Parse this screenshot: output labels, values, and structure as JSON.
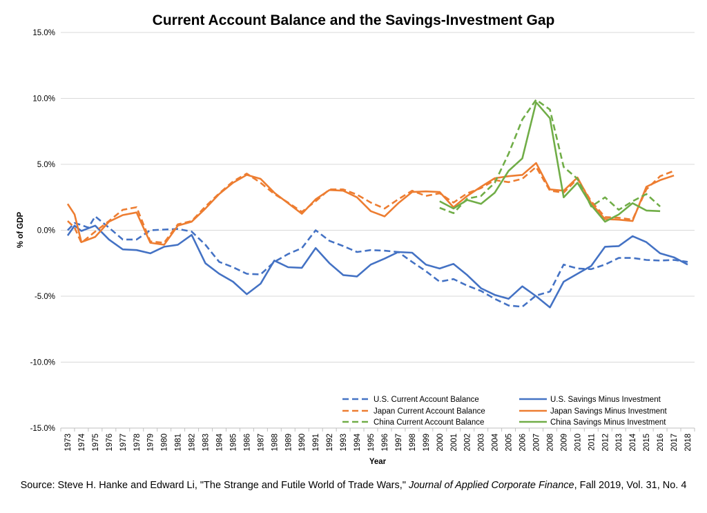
{
  "chart_data": {
    "type": "line",
    "title": "Current Account Balance and the Savings-Investment Gap",
    "xlabel": "Year",
    "ylabel": "% of GDP",
    "ylim": [
      -15,
      15
    ],
    "yticks": [
      -15,
      -10,
      -5,
      0,
      5,
      10,
      15
    ],
    "ytick_labels": [
      "-15.0%",
      "-10.0%",
      "-5.0%",
      "0.0%",
      "5.0%",
      "10.0%",
      "15.0%"
    ],
    "x": [
      1973,
      1974,
      1975,
      1976,
      1977,
      1978,
      1979,
      1980,
      1981,
      1982,
      1983,
      1984,
      1985,
      1986,
      1987,
      1988,
      1989,
      1990,
      1991,
      1992,
      1993,
      1994,
      1995,
      1996,
      1997,
      1998,
      1999,
      2000,
      2001,
      2002,
      2003,
      2004,
      2005,
      2006,
      2007,
      2008,
      2009,
      2010,
      2011,
      2012,
      2013,
      2014,
      2015,
      2016,
      2017,
      2018
    ],
    "x_tick_labels": [
      "1973",
      "1974",
      "1975",
      "1976",
      "1977",
      "1978",
      "1979",
      "1980",
      "1981",
      "1982",
      "1983",
      "1984",
      "1985",
      "1986",
      "1987",
      "1988",
      "1989",
      "1990",
      "1991",
      "1992",
      "1993",
      "1994",
      "1995",
      "1996",
      "1997",
      "1998",
      "1999",
      "2000",
      "2001",
      "2002",
      "2003",
      "2004",
      "2005",
      "2006",
      "2007",
      "2008",
      "2009",
      "2010",
      "2011",
      "2012",
      "2013",
      "2014",
      "2015",
      "2016",
      "2017",
      "2018"
    ],
    "grid": true,
    "legend_position": "bottom-right",
    "series": [
      {
        "name": "U.S. Current Account Balance",
        "color": "#4472C4",
        "dash": true,
        "points": [
          [
            1973,
            0.0
          ],
          [
            1973.5,
            0.55
          ],
          [
            1974,
            0.4
          ],
          [
            1974.5,
            0.2
          ],
          [
            1975,
            1.05
          ],
          [
            1976,
            0.2
          ],
          [
            1977,
            -0.7
          ],
          [
            1978,
            -0.7
          ],
          [
            1979,
            0.0
          ],
          [
            1980,
            0.05
          ],
          [
            1981,
            0.1
          ],
          [
            1982,
            -0.1
          ],
          [
            1983,
            -1.1
          ],
          [
            1984,
            -2.4
          ],
          [
            1985,
            -2.8
          ],
          [
            1986,
            -3.3
          ],
          [
            1987,
            -3.35
          ],
          [
            1988,
            -2.4
          ],
          [
            1989,
            -1.8
          ],
          [
            1990,
            -1.35
          ],
          [
            1991,
            0.0
          ],
          [
            1992,
            -0.8
          ],
          [
            1993,
            -1.2
          ],
          [
            1994,
            -1.65
          ],
          [
            1995,
            -1.5
          ],
          [
            1996,
            -1.55
          ],
          [
            1997,
            -1.65
          ],
          [
            1998,
            -2.4
          ],
          [
            1999,
            -3.1
          ],
          [
            2000,
            -3.9
          ],
          [
            2001,
            -3.7
          ],
          [
            2002,
            -4.2
          ],
          [
            2003,
            -4.6
          ],
          [
            2004,
            -5.2
          ],
          [
            2005,
            -5.7
          ],
          [
            2006,
            -5.8
          ],
          [
            2007,
            -4.95
          ],
          [
            2008,
            -4.65
          ],
          [
            2009,
            -2.6
          ],
          [
            2010,
            -2.9
          ],
          [
            2011,
            -2.95
          ],
          [
            2012,
            -2.6
          ],
          [
            2013,
            -2.1
          ],
          [
            2014,
            -2.1
          ],
          [
            2015,
            -2.25
          ],
          [
            2016,
            -2.3
          ],
          [
            2017,
            -2.25
          ],
          [
            2018,
            -2.4
          ]
        ]
      },
      {
        "name": "U.S. Savings Minus Investment",
        "color": "#4472C4",
        "dash": false,
        "points": [
          [
            1973,
            -0.4
          ],
          [
            1973.5,
            0.35
          ],
          [
            1974,
            -0.05
          ],
          [
            1975,
            0.35
          ],
          [
            1976,
            -0.7
          ],
          [
            1977,
            -1.45
          ],
          [
            1978,
            -1.5
          ],
          [
            1979,
            -1.75
          ],
          [
            1980,
            -1.25
          ],
          [
            1981,
            -1.1
          ],
          [
            1982,
            -0.35
          ],
          [
            1983,
            -2.5
          ],
          [
            1984,
            -3.3
          ],
          [
            1985,
            -3.9
          ],
          [
            1986,
            -4.85
          ],
          [
            1987,
            -4.05
          ],
          [
            1988,
            -2.3
          ],
          [
            1989,
            -2.8
          ],
          [
            1990,
            -2.85
          ],
          [
            1991,
            -1.35
          ],
          [
            1992,
            -2.5
          ],
          [
            1993,
            -3.4
          ],
          [
            1994,
            -3.5
          ],
          [
            1995,
            -2.6
          ],
          [
            1996,
            -2.15
          ],
          [
            1997,
            -1.65
          ],
          [
            1998,
            -1.7
          ],
          [
            1999,
            -2.6
          ],
          [
            2000,
            -2.9
          ],
          [
            2001,
            -2.55
          ],
          [
            2002,
            -3.4
          ],
          [
            2003,
            -4.4
          ],
          [
            2004,
            -4.9
          ],
          [
            2005,
            -5.2
          ],
          [
            2006,
            -4.25
          ],
          [
            2007,
            -5.0
          ],
          [
            2008,
            -5.85
          ],
          [
            2009,
            -3.9
          ],
          [
            2010,
            -3.3
          ],
          [
            2011,
            -2.7
          ],
          [
            2012,
            -1.25
          ],
          [
            2013,
            -1.2
          ],
          [
            2014,
            -0.45
          ],
          [
            2015,
            -0.9
          ],
          [
            2016,
            -1.75
          ],
          [
            2017,
            -2.05
          ],
          [
            2018,
            -2.6
          ]
        ]
      },
      {
        "name": "Japan Current Account Balance",
        "color": "#ED7D31",
        "dash": true,
        "points": [
          [
            1973,
            0.7
          ],
          [
            1973.5,
            0.2
          ],
          [
            1974,
            -0.95
          ],
          [
            1975,
            -0.1
          ],
          [
            1976,
            0.7
          ],
          [
            1977,
            1.55
          ],
          [
            1978,
            1.75
          ],
          [
            1979,
            -0.85
          ],
          [
            1980,
            -0.95
          ],
          [
            1981,
            0.45
          ],
          [
            1982,
            0.7
          ],
          [
            1983,
            1.8
          ],
          [
            1984,
            2.8
          ],
          [
            1985,
            3.7
          ],
          [
            1986,
            4.3
          ],
          [
            1987,
            3.6
          ],
          [
            1988,
            2.75
          ],
          [
            1989,
            2.1
          ],
          [
            1990,
            1.4
          ],
          [
            1991,
            2.2
          ],
          [
            1992,
            3.1
          ],
          [
            1993,
            3.1
          ],
          [
            1994,
            2.7
          ],
          [
            1995,
            2.1
          ],
          [
            1996,
            1.65
          ],
          [
            1997,
            2.35
          ],
          [
            1998,
            3.0
          ],
          [
            1999,
            2.6
          ],
          [
            2000,
            2.8
          ],
          [
            2001,
            2.1
          ],
          [
            2002,
            2.8
          ],
          [
            2003,
            3.2
          ],
          [
            2004,
            3.8
          ],
          [
            2005,
            3.65
          ],
          [
            2006,
            3.9
          ],
          [
            2007,
            4.8
          ],
          [
            2008,
            3.0
          ],
          [
            2009,
            2.85
          ],
          [
            2010,
            3.9
          ],
          [
            2011,
            2.2
          ],
          [
            2012,
            1.0
          ],
          [
            2013,
            0.95
          ],
          [
            2014,
            0.8
          ],
          [
            2015,
            3.1
          ],
          [
            2016,
            4.1
          ],
          [
            2017,
            4.5
          ]
        ]
      },
      {
        "name": "Japan Savings Minus Investment",
        "color": "#ED7D31",
        "dash": false,
        "points": [
          [
            1973,
            2.0
          ],
          [
            1973.5,
            1.2
          ],
          [
            1974,
            -0.9
          ],
          [
            1975,
            -0.5
          ],
          [
            1976,
            0.65
          ],
          [
            1977,
            1.15
          ],
          [
            1978,
            1.35
          ],
          [
            1979,
            -0.95
          ],
          [
            1980,
            -1.1
          ],
          [
            1981,
            0.35
          ],
          [
            1982,
            0.65
          ],
          [
            1983,
            1.65
          ],
          [
            1984,
            2.75
          ],
          [
            1985,
            3.6
          ],
          [
            1986,
            4.2
          ],
          [
            1987,
            3.9
          ],
          [
            1988,
            2.85
          ],
          [
            1989,
            2.05
          ],
          [
            1990,
            1.25
          ],
          [
            1991,
            2.35
          ],
          [
            1992,
            3.05
          ],
          [
            1993,
            3.0
          ],
          [
            1994,
            2.5
          ],
          [
            1995,
            1.45
          ],
          [
            1996,
            1.05
          ],
          [
            1997,
            2.05
          ],
          [
            1998,
            2.9
          ],
          [
            1999,
            2.95
          ],
          [
            2000,
            2.9
          ],
          [
            2001,
            1.75
          ],
          [
            2002,
            2.6
          ],
          [
            2003,
            3.3
          ],
          [
            2004,
            3.95
          ],
          [
            2005,
            4.1
          ],
          [
            2006,
            4.2
          ],
          [
            2007,
            5.1
          ],
          [
            2008,
            3.1
          ],
          [
            2009,
            3.0
          ],
          [
            2010,
            4.0
          ],
          [
            2011,
            2.05
          ],
          [
            2012,
            0.85
          ],
          [
            2013,
            0.8
          ],
          [
            2014,
            0.7
          ],
          [
            2015,
            3.3
          ],
          [
            2016,
            3.8
          ],
          [
            2017,
            4.15
          ]
        ]
      },
      {
        "name": "China Current Account Balance",
        "color": "#70AD47",
        "dash": true,
        "points": [
          [
            2000,
            1.7
          ],
          [
            2001,
            1.3
          ],
          [
            2002,
            2.4
          ],
          [
            2003,
            2.6
          ],
          [
            2004,
            3.6
          ],
          [
            2005,
            5.8
          ],
          [
            2006,
            8.4
          ],
          [
            2007,
            9.9
          ],
          [
            2008,
            9.15
          ],
          [
            2009,
            4.8
          ],
          [
            2010,
            3.9
          ],
          [
            2011,
            1.8
          ],
          [
            2012,
            2.5
          ],
          [
            2013,
            1.55
          ],
          [
            2014,
            2.2
          ],
          [
            2015,
            2.75
          ],
          [
            2016,
            1.8
          ]
        ]
      },
      {
        "name": "China Savings Minus Investment",
        "color": "#70AD47",
        "dash": false,
        "points": [
          [
            2000,
            2.2
          ],
          [
            2001,
            1.65
          ],
          [
            2002,
            2.3
          ],
          [
            2003,
            2.0
          ],
          [
            2004,
            2.85
          ],
          [
            2005,
            4.5
          ],
          [
            2006,
            5.45
          ],
          [
            2007,
            9.7
          ],
          [
            2008,
            8.5
          ],
          [
            2009,
            2.5
          ],
          [
            2010,
            3.6
          ],
          [
            2011,
            1.9
          ],
          [
            2012,
            0.65
          ],
          [
            2013,
            1.2
          ],
          [
            2014,
            2.05
          ],
          [
            2015,
            1.5
          ],
          [
            2016,
            1.45
          ]
        ]
      }
    ]
  },
  "source": {
    "prefix": "Source: Steve H. Hanke and Edward Li, \"The Strange and Futile World of Trade Wars,\" ",
    "journal": "Journal of Applied Corporate Finance",
    "suffix": ", Fall 2019, Vol. 31, No. 4"
  }
}
